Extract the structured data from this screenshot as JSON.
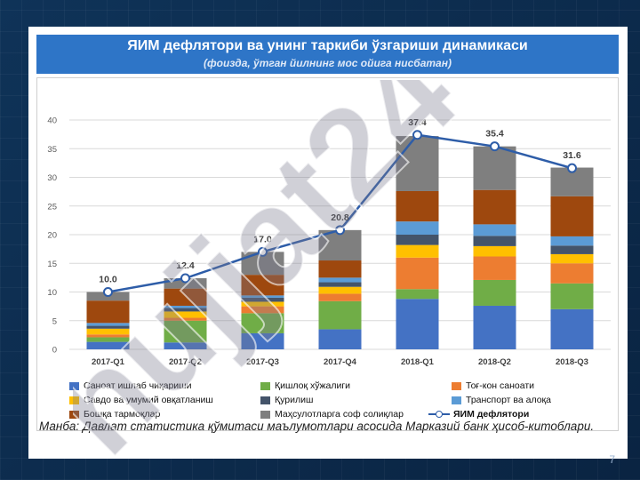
{
  "title": "ЯИМ дефлятори ва унинг таркиби ўзгариши динамикаси",
  "subtitle": "(фоизда, ўтган йилнинг мос ойига нисбатан)",
  "source_text": "Манба: Давлат статистика қўмитаси маълумотлари асосида Марказий банк ҳисоб-китоблари.",
  "page_number": "7",
  "watermark_text": "hujjat24",
  "chart_data": {
    "type": "bar",
    "stacked": true,
    "categories": [
      "2017-Q1",
      "2017-Q2",
      "2017-Q3",
      "2017-Q4",
      "2018-Q1",
      "2018-Q2",
      "2018-Q3"
    ],
    "ylim": [
      0,
      40
    ],
    "yticks": [
      0,
      5,
      10,
      15,
      20,
      25,
      30,
      35,
      40
    ],
    "grid": true,
    "series": [
      {
        "name": "Саноат ишлаб чиқариши",
        "color": "#4472c4",
        "values": [
          1.3,
          1.2,
          2.8,
          3.5,
          8.8,
          7.6,
          7.0
        ]
      },
      {
        "name": "Қишлоқ хўжалиги",
        "color": "#70ad47",
        "values": [
          0.8,
          3.8,
          3.5,
          4.9,
          1.7,
          4.5,
          4.5
        ]
      },
      {
        "name": "Тоғ-кон саноати",
        "color": "#ed7d31",
        "values": [
          0.5,
          0.5,
          1.2,
          1.3,
          5.5,
          4.1,
          3.5
        ]
      },
      {
        "name": "Савдо ва умумий овқатланиш",
        "color": "#ffc000",
        "values": [
          1.0,
          1.1,
          0.8,
          1.2,
          2.2,
          1.8,
          1.6
        ]
      },
      {
        "name": "Қурилиш",
        "color": "#44546a",
        "values": [
          0.5,
          0.6,
          0.7,
          0.8,
          1.8,
          1.8,
          1.5
        ]
      },
      {
        "name": "Транспорт ва алоқа",
        "color": "#5b9bd5",
        "values": [
          0.5,
          0.4,
          0.4,
          0.8,
          2.3,
          2.0,
          1.6
        ]
      },
      {
        "name": "Бошқа тармоқлар",
        "color": "#9e480e",
        "values": [
          3.9,
          3.0,
          3.6,
          3.0,
          5.3,
          6.0,
          7.0
        ]
      },
      {
        "name": "Маҳсулотларга соф солиқлар",
        "color": "#7f7f7f",
        "values": [
          1.5,
          1.8,
          4.0,
          5.3,
          9.6,
          7.6,
          5.0
        ]
      }
    ],
    "line": {
      "name": "ЯИМ дефлятори",
      "color": "#2e5da8",
      "values": [
        10.0,
        12.4,
        17.0,
        20.8,
        37.4,
        35.4,
        31.6
      ]
    },
    "line_labels": [
      "10.0",
      "12.4",
      "17.0",
      "20.8",
      "37.4",
      "35.4",
      "31.6"
    ]
  }
}
